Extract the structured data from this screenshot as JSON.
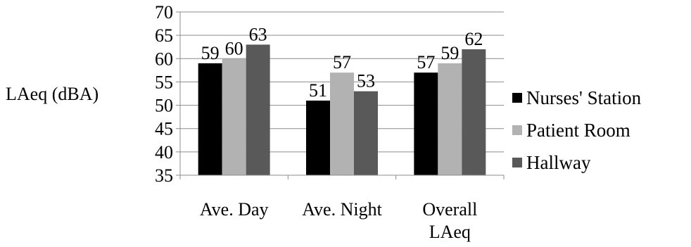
{
  "chart_data": {
    "type": "bar",
    "title": "",
    "xlabel": "",
    "ylabel": "LAeq (dBA)",
    "ylim": [
      35,
      70
    ],
    "ytick_step": 5,
    "grid": true,
    "legend_position": "right",
    "categories": [
      "Ave. Day",
      "Ave. Night",
      "Overall LAeq"
    ],
    "category_lines": [
      [
        "Ave. Day"
      ],
      [
        "Ave. Night"
      ],
      [
        "Overall",
        "LAeq"
      ]
    ],
    "series": [
      {
        "name": "Nurses' Station",
        "color": "#000000",
        "values": [
          59,
          51,
          57
        ]
      },
      {
        "name": "Patient Room",
        "color": "#b2b2b2",
        "values": [
          60,
          57,
          59
        ]
      },
      {
        "name": "Hallway",
        "color": "#595959",
        "values": [
          63,
          53,
          62
        ]
      }
    ]
  }
}
